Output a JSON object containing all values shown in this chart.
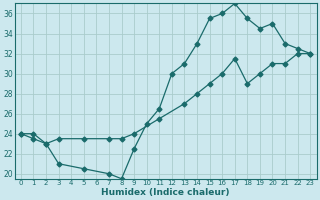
{
  "xlabel": "Humidex (Indice chaleur)",
  "ylabel": "",
  "bg_color": "#cce8ee",
  "grid_color": "#aacccc",
  "line_color": "#1a6b6b",
  "xlim": [
    -0.5,
    23.5
  ],
  "ylim": [
    19.5,
    37.0
  ],
  "yticks": [
    20,
    22,
    24,
    26,
    28,
    30,
    32,
    34,
    36
  ],
  "xticks": [
    0,
    1,
    2,
    3,
    4,
    5,
    6,
    7,
    8,
    9,
    10,
    11,
    12,
    13,
    14,
    15,
    16,
    17,
    18,
    19,
    20,
    21,
    22,
    23
  ],
  "series1_x": [
    0,
    1,
    2,
    3,
    5,
    7,
    8,
    9,
    10,
    11,
    12,
    13,
    14,
    15,
    16,
    17,
    18,
    19,
    20,
    21,
    22,
    23
  ],
  "series1_y": [
    24,
    24,
    23,
    21,
    20.5,
    20,
    19.5,
    22.5,
    25,
    26.5,
    30,
    31,
    33,
    35.5,
    36,
    37,
    35.5,
    34.5,
    35,
    33,
    32.5,
    32
  ],
  "series2_x": [
    0,
    1,
    2,
    3,
    5,
    7,
    8,
    9,
    11,
    13,
    14,
    15,
    16,
    17,
    18,
    19,
    20,
    21,
    22,
    23
  ],
  "series2_y": [
    24,
    23.5,
    23,
    23.5,
    23.5,
    23.5,
    23.5,
    24,
    25.5,
    27,
    28,
    29,
    30,
    31.5,
    29,
    30,
    31,
    31,
    32,
    32
  ]
}
